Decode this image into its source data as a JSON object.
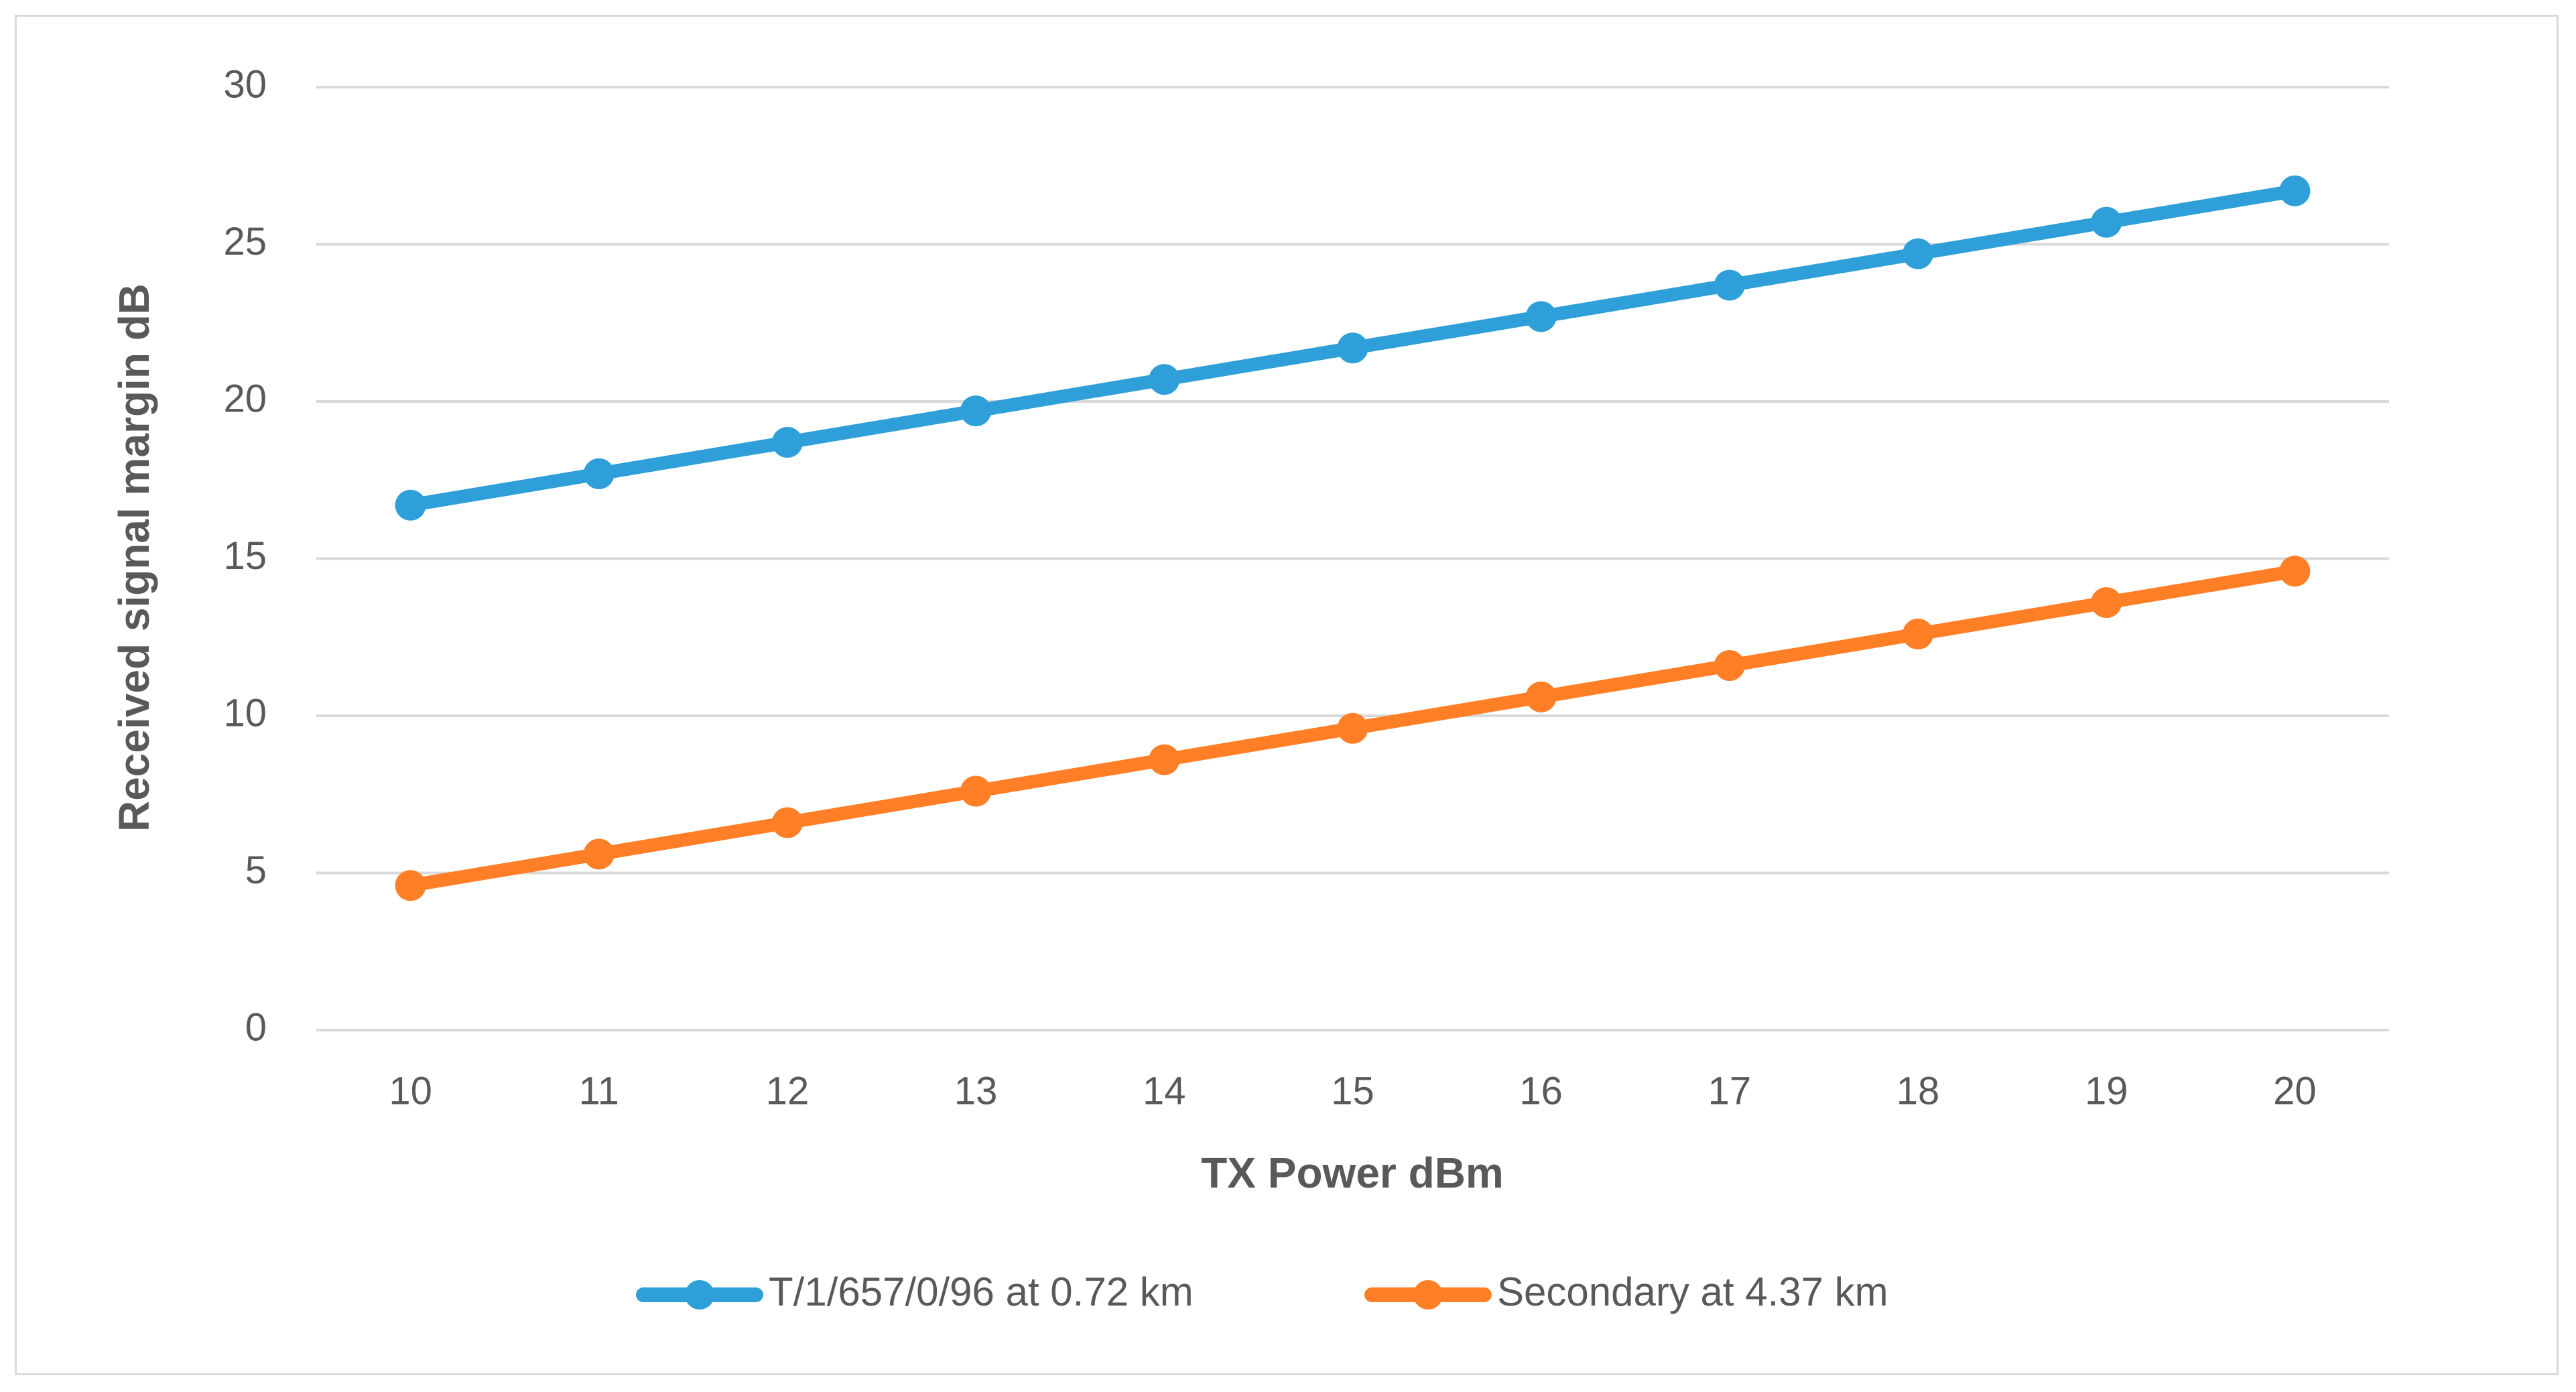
{
  "chart_data": {
    "type": "line",
    "title": "",
    "xlabel": "TX Power dBm",
    "ylabel": "Received signal margin dB",
    "x": [
      10,
      11,
      12,
      13,
      14,
      15,
      16,
      17,
      18,
      19,
      20
    ],
    "x_ticks": [
      "10",
      "11",
      "12",
      "13",
      "14",
      "15",
      "16",
      "17",
      "18",
      "19",
      "20"
    ],
    "y_ticks": [
      "0",
      "5",
      "10",
      "15",
      "20",
      "25",
      "30"
    ],
    "ylim": [
      0,
      30
    ],
    "grid": true,
    "legend_position": "bottom",
    "series": [
      {
        "name": "T/1/657/0/96 at 0.72 km",
        "color": "#2e9fd8",
        "values": [
          16.7,
          17.7,
          18.7,
          19.7,
          20.7,
          21.7,
          22.7,
          23.7,
          24.7,
          25.7,
          26.7
        ]
      },
      {
        "name": "Secondary at 4.37 km",
        "color": "#ff7f27",
        "values": [
          4.6,
          5.6,
          6.6,
          7.6,
          8.6,
          9.6,
          10.6,
          11.6,
          12.6,
          13.6,
          14.6
        ]
      }
    ]
  }
}
